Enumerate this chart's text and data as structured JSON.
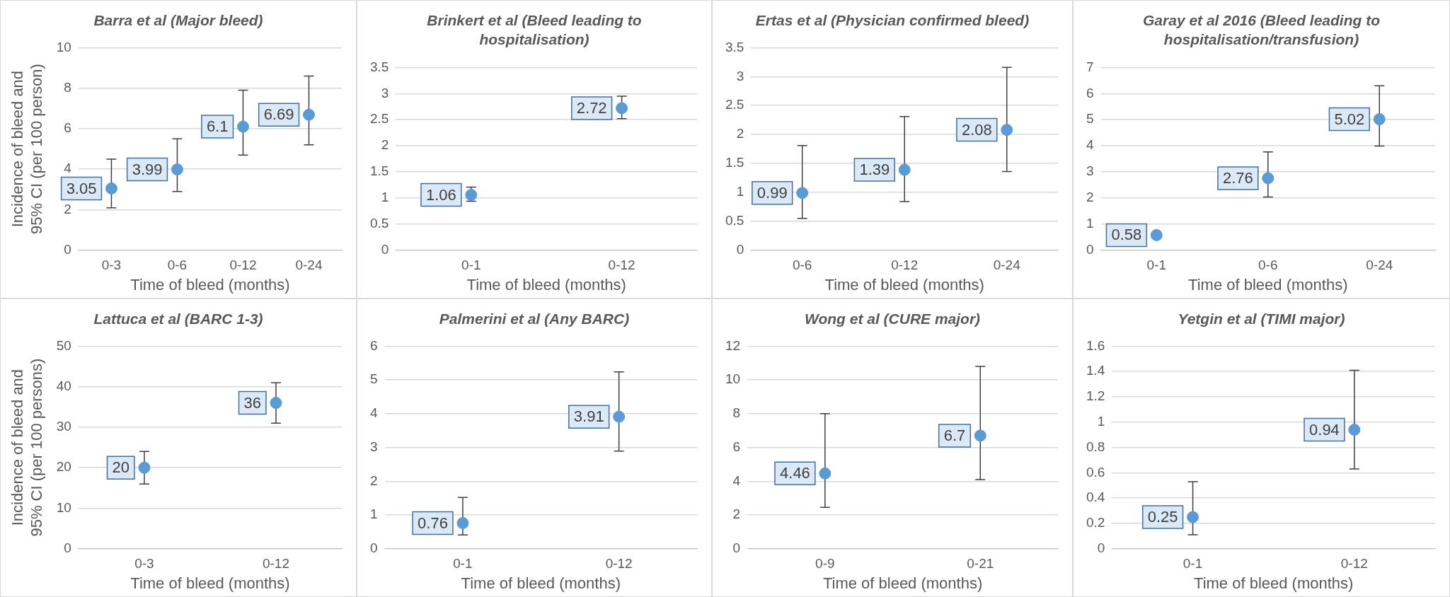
{
  "chart_data": [
    {
      "type": "scatter",
      "title": "Barra et al (Major bleed)",
      "xlabel": "Time of bleed (months)",
      "ylabel": "Incidence of bleed and 95% CI (per 100 person)",
      "categories": [
        "0-3",
        "0-6",
        "0-12",
        "0-24"
      ],
      "values": [
        3.05,
        3.99,
        6.1,
        6.69
      ],
      "errors": [
        [
          2.1,
          4.5
        ],
        [
          2.9,
          5.5
        ],
        [
          4.7,
          7.9
        ],
        [
          5.2,
          8.6
        ]
      ],
      "color": "#5b9bd5",
      "ylim": [
        0,
        10
      ],
      "yticks": [
        0,
        2,
        4,
        6,
        8,
        10
      ],
      "grid": "y",
      "data_labels": true,
      "marker": "circle"
    },
    {
      "type": "scatter",
      "title": "Brinkert et al (Bleed leading to hospitalisation)",
      "xlabel": "Time of bleed (months)",
      "categories": [
        "0-1",
        "0-12"
      ],
      "values": [
        1.06,
        2.72
      ],
      "errors": [
        [
          0.94,
          1.21
        ],
        [
          2.52,
          2.95
        ]
      ],
      "color": "#5b9bd5",
      "ylim": [
        0,
        3.5
      ],
      "yticks": [
        0,
        0.5,
        1,
        1.5,
        2,
        2.5,
        3,
        3.5
      ],
      "grid": "y",
      "data_labels": true,
      "marker": "circle"
    },
    {
      "type": "scatter",
      "title": "Ertas et al (Physician confirmed bleed)",
      "xlabel": "Time of bleed (months)",
      "categories": [
        "0-6",
        "0-12",
        "0-24"
      ],
      "values": [
        0.99,
        1.39,
        2.08
      ],
      "errors": [
        [
          0.55,
          1.81
        ],
        [
          0.84,
          2.31
        ],
        [
          1.36,
          3.16
        ]
      ],
      "color": "#5b9bd5",
      "ylim": [
        0,
        3.5
      ],
      "yticks": [
        0,
        0.5,
        1,
        1.5,
        2,
        2.5,
        3,
        3.5
      ],
      "grid": "y",
      "data_labels": true,
      "marker": "circle"
    },
    {
      "type": "scatter",
      "title": "Garay et al 2016 (Bleed leading to hospitalisation/transfusion)",
      "xlabel": "Time of bleed (months)",
      "categories": [
        "0-1",
        "0-6",
        "0-24"
      ],
      "values": [
        0.58,
        2.76,
        5.02
      ],
      "errors": [
        null,
        [
          2.04,
          3.77
        ],
        [
          3.99,
          6.3
        ]
      ],
      "color": "#5b9bd5",
      "ylim": [
        0,
        7
      ],
      "yticks": [
        0,
        1,
        2,
        3,
        4,
        5,
        6,
        7
      ],
      "grid": "y",
      "data_labels": true,
      "marker": "circle"
    },
    {
      "type": "scatter",
      "title": "Lattuca et al (BARC 1-3)",
      "xlabel": "Time of bleed (months)",
      "ylabel": "Incidence of bleed and 95% CI (per 100 persons)",
      "categories": [
        "0-3",
        "0-12"
      ],
      "values": [
        20,
        36
      ],
      "errors": [
        [
          16,
          24
        ],
        [
          31,
          41
        ]
      ],
      "color": "#5b9bd5",
      "ylim": [
        0,
        50
      ],
      "yticks": [
        0,
        10,
        20,
        30,
        40,
        50
      ],
      "grid": "y",
      "data_labels": true,
      "marker": "circle"
    },
    {
      "type": "scatter",
      "title": "Palmerini et al (Any BARC)",
      "xlabel": "Time of bleed (months)",
      "categories": [
        "0-1",
        "0-12"
      ],
      "values": [
        0.76,
        3.91
      ],
      "errors": [
        [
          0.41,
          1.52
        ],
        [
          2.89,
          5.24
        ]
      ],
      "color": "#5b9bd5",
      "ylim": [
        0,
        6
      ],
      "yticks": [
        0,
        1,
        2,
        3,
        4,
        5,
        6
      ],
      "grid": "y",
      "data_labels": true,
      "marker": "circle"
    },
    {
      "type": "scatter",
      "title": "Wong et al (CURE major)",
      "xlabel": "Time of bleed (months)",
      "categories": [
        "0-9",
        "0-21"
      ],
      "values": [
        4.46,
        6.7
      ],
      "errors": [
        [
          2.45,
          8
        ],
        [
          4.1,
          10.8
        ]
      ],
      "color": "#5b9bd5",
      "ylim": [
        0,
        12
      ],
      "yticks": [
        0,
        2,
        4,
        6,
        8,
        10,
        12
      ],
      "grid": "y",
      "data_labels": true,
      "marker": "circle"
    },
    {
      "type": "scatter",
      "title": "Yetgin et al (TIMI major)",
      "xlabel": "Time of bleed (months)",
      "categories": [
        "0-1",
        "0-12"
      ],
      "values": [
        0.25,
        0.94
      ],
      "errors": [
        [
          0.11,
          0.53
        ],
        [
          0.63,
          1.41
        ]
      ],
      "color": "#5b9bd5",
      "ylim": [
        0,
        1.6
      ],
      "yticks": [
        0,
        0.2,
        0.4,
        0.6,
        0.8,
        1,
        1.2,
        1.4,
        1.6
      ],
      "grid": "y",
      "data_labels": true,
      "marker": "circle"
    }
  ]
}
